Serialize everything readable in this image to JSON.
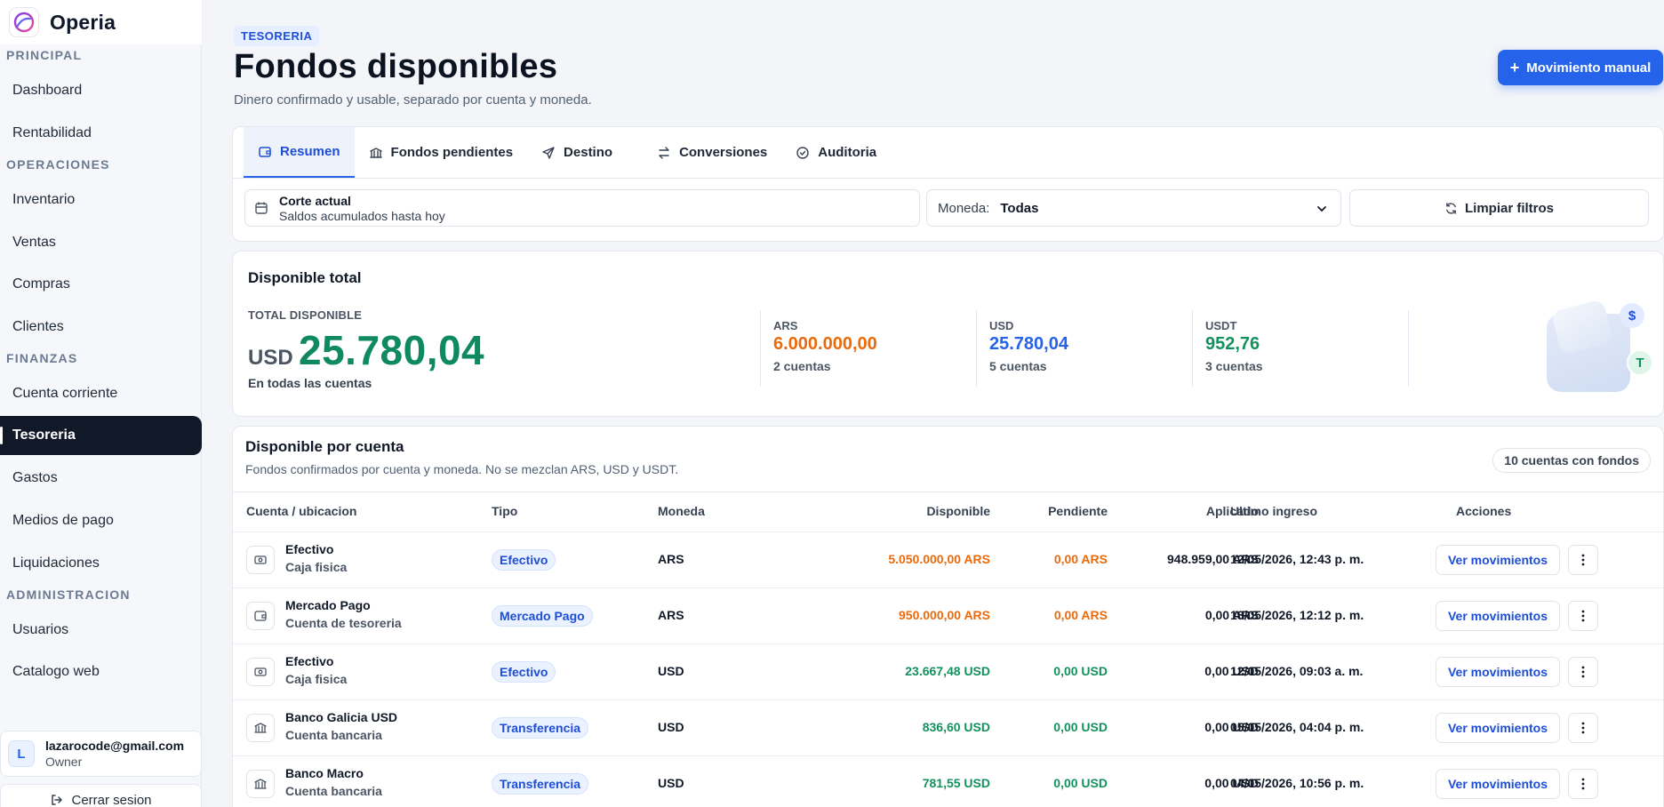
{
  "app": {
    "name": "Operia"
  },
  "sidebar": {
    "sections": [
      {
        "title": "PRINCIPAL",
        "items": [
          "Dashboard",
          "Rentabilidad"
        ]
      },
      {
        "title": "OPERACIONES",
        "items": [
          "Inventario",
          "Ventas",
          "Compras",
          "Clientes"
        ]
      },
      {
        "title": "FINANZAS",
        "items": [
          "Cuenta corriente",
          "Tesoreria",
          "Gastos",
          "Medios de pago",
          "Liquidaciones"
        ]
      },
      {
        "title": "ADMINISTRACION",
        "items": [
          "Usuarios",
          "Catalogo web"
        ]
      }
    ],
    "active": "Tesoreria",
    "user": {
      "initial": "L",
      "email": "lazarocode@gmail.com",
      "role": "Owner"
    },
    "logout_label": "Cerrar sesion"
  },
  "header": {
    "kicker": "TESORERIA",
    "title": "Fondos disponibles",
    "subtitle": "Dinero confirmado y usable, separado por cuenta y moneda.",
    "primary_button": "Movimiento manual"
  },
  "tabs": [
    {
      "label": "Resumen",
      "icon": "wallet-icon"
    },
    {
      "label": "Fondos pendientes",
      "icon": "bank-icon"
    },
    {
      "label": "Destino",
      "icon": "send-icon"
    },
    {
      "label": "Conversiones",
      "icon": "swap-icon"
    },
    {
      "label": "Auditoria",
      "icon": "check-circle-icon"
    }
  ],
  "filters": {
    "period_title": "Corte actual",
    "period_sub": "Saldos acumulados hasta hoy",
    "currency_label": "Moneda:",
    "currency_value": "Todas",
    "clear_label": "Limpiar filtros"
  },
  "summary": {
    "title": "Disponible total",
    "total_label": "TOTAL DISPONIBLE",
    "total_currency": "USD",
    "total_value": "25.780,04",
    "total_sub": "En todas las cuentas",
    "currencies": [
      {
        "code": "ARS",
        "value": "6.000.000,00",
        "count": "2 cuentas",
        "color": "#ea6a0c"
      },
      {
        "code": "USD",
        "value": "25.780,04",
        "count": "5 cuentas",
        "color": "#2563eb"
      },
      {
        "code": "USDT",
        "value": "952,76",
        "count": "3 cuentas",
        "color": "#12915f"
      }
    ],
    "badges": {
      "dollar": "$",
      "tether": "T"
    }
  },
  "accounts": {
    "title": "Disponible por cuenta",
    "subtitle": "Fondos confirmados por cuenta y moneda. No se mezclan ARS, USD y USDT.",
    "badge": "10 cuentas con fondos",
    "columns": [
      "Cuenta / ubicacion",
      "Tipo",
      "Moneda",
      "Disponible",
      "Pendiente",
      "Aplicado",
      "Ultimo ingreso",
      "Acciones"
    ],
    "action_label": "Ver movimientos",
    "rows": [
      {
        "icon": "cash-icon",
        "name": "Efectivo",
        "location": "Caja fisica",
        "type": "Efectivo",
        "currency": "ARS",
        "available": "5.050.000,00 ARS",
        "pending": "0,00 ARS",
        "applied": "948.959,00 ARS",
        "last": "12/05/2026, 12:43 p. m.",
        "tone": "orange"
      },
      {
        "icon": "wallet-icon",
        "name": "Mercado Pago",
        "location": "Cuenta de tesoreria",
        "type": "Mercado Pago",
        "currency": "ARS",
        "available": "950.000,00 ARS",
        "pending": "0,00 ARS",
        "applied": "0,00 ARS",
        "last": "18/05/2026, 12:12 p. m.",
        "tone": "orange"
      },
      {
        "icon": "cash-icon",
        "name": "Efectivo",
        "location": "Caja fisica",
        "type": "Efectivo",
        "currency": "USD",
        "available": "23.667,48 USD",
        "pending": "0,00 USD",
        "applied": "0,00 USD",
        "last": "12/05/2026, 09:03 a. m.",
        "tone": "green"
      },
      {
        "icon": "bank-icon",
        "name": "Banco Galicia USD",
        "location": "Cuenta bancaria",
        "type": "Transferencia",
        "currency": "USD",
        "available": "836,60 USD",
        "pending": "0,00 USD",
        "applied": "0,00 USD",
        "last": "05/05/2026, 04:04 p. m.",
        "tone": "green"
      },
      {
        "icon": "bank-icon",
        "name": "Banco Macro",
        "location": "Cuenta bancaria",
        "type": "Transferencia",
        "currency": "USD",
        "available": "781,55 USD",
        "pending": "0,00 USD",
        "applied": "0,00 USD",
        "last": "04/05/2026, 10:56 p. m.",
        "tone": "green"
      }
    ]
  }
}
